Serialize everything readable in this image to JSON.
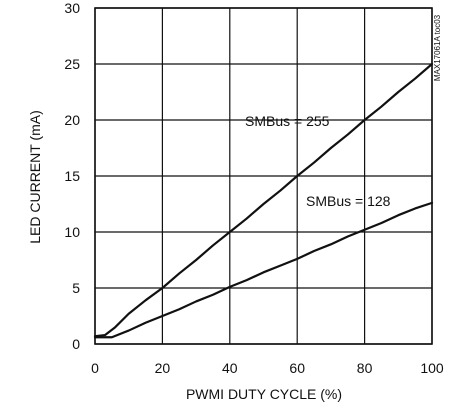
{
  "chart_data": {
    "type": "line",
    "xlabel": "PWMI DUTY CYCLE (%)",
    "ylabel": "LED CURRENT (mA)",
    "xlim": [
      0,
      100
    ],
    "ylim": [
      0,
      30
    ],
    "x_ticks": [
      0,
      20,
      40,
      60,
      80,
      100
    ],
    "y_ticks": [
      0,
      5,
      10,
      15,
      20,
      25,
      30
    ],
    "grid": true,
    "side_label": "MAX17061A toc03",
    "series": [
      {
        "label": "SMBus = 255",
        "points": [
          [
            0,
            0.7
          ],
          [
            3,
            0.8
          ],
          [
            6,
            1.5
          ],
          [
            10,
            2.7
          ],
          [
            15,
            3.9
          ],
          [
            20,
            5.0
          ],
          [
            25,
            6.3
          ],
          [
            30,
            7.5
          ],
          [
            35,
            8.8
          ],
          [
            40,
            10.0
          ],
          [
            45,
            11.2
          ],
          [
            50,
            12.5
          ],
          [
            55,
            13.7
          ],
          [
            60,
            15.0
          ],
          [
            65,
            16.2
          ],
          [
            70,
            17.5
          ],
          [
            75,
            18.7
          ],
          [
            80,
            20.0
          ],
          [
            85,
            21.2
          ],
          [
            90,
            22.5
          ],
          [
            95,
            23.7
          ],
          [
            100,
            25.0
          ]
        ]
      },
      {
        "label": "SMBus = 128",
        "points": [
          [
            0,
            0.6
          ],
          [
            5,
            0.6
          ],
          [
            10,
            1.2
          ],
          [
            15,
            1.9
          ],
          [
            20,
            2.5
          ],
          [
            25,
            3.1
          ],
          [
            30,
            3.8
          ],
          [
            35,
            4.4
          ],
          [
            40,
            5.1
          ],
          [
            45,
            5.7
          ],
          [
            50,
            6.4
          ],
          [
            55,
            7.0
          ],
          [
            60,
            7.6
          ],
          [
            65,
            8.3
          ],
          [
            70,
            8.9
          ],
          [
            75,
            9.6
          ],
          [
            80,
            10.2
          ],
          [
            85,
            10.8
          ],
          [
            90,
            11.5
          ],
          [
            95,
            12.1
          ],
          [
            100,
            12.6
          ]
        ]
      }
    ]
  }
}
